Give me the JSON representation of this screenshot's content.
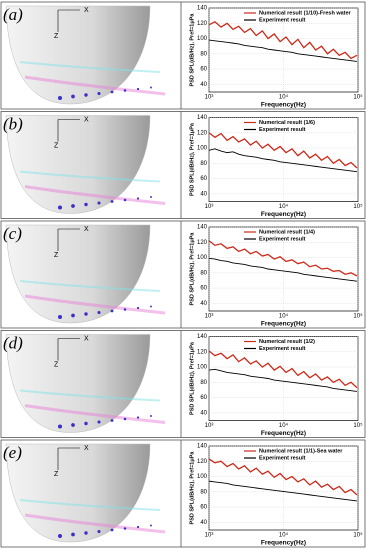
{
  "chart_data": [
    {
      "type": "line",
      "panel": "(a)",
      "inset_axes": [
        "X",
        "Z"
      ],
      "xlabel": "Frequency(Hz)",
      "ylabel": "PSD SPL(dB/Hz), Pref=1μPa",
      "log_x": true,
      "xlim": [
        1000,
        100000
      ],
      "xticks": [
        {
          "value": 1000,
          "label": "10³"
        },
        {
          "value": 10000,
          "label": "10⁴"
        },
        {
          "value": 100000,
          "label": "10⁵"
        }
      ],
      "ylim": [
        30,
        140
      ],
      "yticks": [
        40,
        60,
        80,
        100,
        120,
        140
      ],
      "grid": true,
      "x": [
        1000,
        1200,
        1450,
        1750,
        2100,
        2500,
        3000,
        3600,
        4300,
        5200,
        6200,
        7500,
        9000,
        10800,
        13000,
        15600,
        18700,
        22500,
        27000,
        32400,
        38900,
        46700,
        56000,
        67200,
        80600,
        96700
      ],
      "series": [
        {
          "name": "Numerical result (1/10)-Fresh water",
          "color": "#cc2a1a",
          "values": [
            118,
            122,
            115,
            120,
            112,
            116,
            108,
            113,
            104,
            110,
            100,
            106,
            96,
            102,
            92,
            99,
            88,
            95,
            85,
            90,
            80,
            86,
            78,
            82,
            74,
            78
          ]
        },
        {
          "name": "Experiment result",
          "color": "#000000",
          "values": [
            98,
            97,
            96,
            95,
            94,
            93,
            91,
            90,
            89,
            88,
            86,
            85,
            84,
            83,
            82,
            80,
            79,
            78,
            77,
            76,
            75,
            74,
            73,
            72,
            71,
            70
          ]
        }
      ]
    },
    {
      "type": "line",
      "panel": "(b)",
      "inset_axes": [
        "X",
        "Z"
      ],
      "xlabel": "Frequency(Hz)",
      "ylabel": "PSD SPL(dB/Hz), Pref=1μPa",
      "log_x": true,
      "xlim": [
        1000,
        100000
      ],
      "xticks": [
        {
          "value": 1000,
          "label": "10³"
        },
        {
          "value": 10000,
          "label": "10⁴"
        },
        {
          "value": 100000,
          "label": "10⁵"
        }
      ],
      "ylim": [
        30,
        140
      ],
      "yticks": [
        40,
        60,
        80,
        100,
        120,
        140
      ],
      "grid": true,
      "x": [
        1000,
        1200,
        1450,
        1750,
        2100,
        2500,
        3000,
        3600,
        4300,
        5200,
        6200,
        7500,
        9000,
        10800,
        13000,
        15600,
        18700,
        22500,
        27000,
        32400,
        38900,
        46700,
        56000,
        67200,
        80600,
        96700
      ],
      "series": [
        {
          "name": "Numerical result (1/6)",
          "color": "#cc2a1a",
          "values": [
            120,
            114,
            119,
            110,
            115,
            108,
            112,
            104,
            109,
            100,
            105,
            97,
            102,
            94,
            99,
            90,
            96,
            87,
            92,
            84,
            89,
            80,
            85,
            77,
            81,
            74
          ]
        },
        {
          "name": "Experiment result",
          "color": "#000000",
          "values": [
            97,
            99,
            96,
            94,
            95,
            92,
            90,
            89,
            88,
            86,
            85,
            84,
            82,
            81,
            80,
            79,
            78,
            77,
            76,
            75,
            74,
            73,
            72,
            71,
            70,
            69
          ]
        }
      ]
    },
    {
      "type": "line",
      "panel": "(c)",
      "inset_axes": [
        "X",
        "Z"
      ],
      "xlabel": "Frequency(Hz)",
      "ylabel": "PSD SPL(dB/Hz), Pref=1μPa",
      "log_x": true,
      "xlim": [
        1000,
        100000
      ],
      "xticks": [
        {
          "value": 1000,
          "label": "10³"
        },
        {
          "value": 10000,
          "label": "10⁴"
        },
        {
          "value": 100000,
          "label": "10⁵"
        }
      ],
      "ylim": [
        30,
        140
      ],
      "yticks": [
        40,
        60,
        80,
        100,
        120,
        140
      ],
      "grid": true,
      "x": [
        1000,
        1200,
        1450,
        1750,
        2100,
        2500,
        3000,
        3600,
        4300,
        5200,
        6200,
        7500,
        9000,
        10800,
        13000,
        15600,
        18700,
        22500,
        27000,
        32400,
        38900,
        46700,
        56000,
        67200,
        80600,
        96700
      ],
      "series": [
        {
          "name": "Numerical result (1/4)",
          "color": "#cc2a1a",
          "values": [
            122,
            116,
            118,
            112,
            114,
            108,
            111,
            105,
            108,
            102,
            104,
            98,
            101,
            95,
            97,
            92,
            94,
            88,
            90,
            85,
            86,
            82,
            83,
            78,
            80,
            76
          ]
        },
        {
          "name": "Experiment result",
          "color": "#000000",
          "values": [
            99,
            98,
            96,
            95,
            93,
            92,
            91,
            89,
            88,
            87,
            85,
            84,
            83,
            82,
            81,
            80,
            78,
            77,
            76,
            75,
            74,
            73,
            72,
            71,
            70,
            69
          ]
        }
      ]
    },
    {
      "type": "line",
      "panel": "(d)",
      "inset_axes": [
        "X",
        "Z"
      ],
      "xlabel": "Frequency(Hz)",
      "ylabel": "PSD SPL(dB/Hz), Pref=1μPa",
      "log_x": true,
      "xlim": [
        1000,
        100000
      ],
      "xticks": [
        {
          "value": 1000,
          "label": "10³"
        },
        {
          "value": 10000,
          "label": "10⁴"
        },
        {
          "value": 100000,
          "label": "10⁵"
        }
      ],
      "ylim": [
        30,
        140
      ],
      "yticks": [
        40,
        60,
        80,
        100,
        120,
        140
      ],
      "grid": true,
      "x": [
        1000,
        1200,
        1450,
        1750,
        2100,
        2500,
        3000,
        3600,
        4300,
        5200,
        6200,
        7500,
        9000,
        10800,
        13000,
        15600,
        18700,
        22500,
        27000,
        32400,
        38900,
        46700,
        56000,
        67200,
        80600,
        96700
      ],
      "series": [
        {
          "name": "Numerical result (1/2)",
          "color": "#cc2a1a",
          "values": [
            121,
            115,
            118,
            111,
            116,
            107,
            112,
            104,
            108,
            100,
            105,
            96,
            101,
            93,
            98,
            89,
            94,
            86,
            91,
            83,
            87,
            80,
            84,
            76,
            80,
            73
          ]
        },
        {
          "name": "Experiment result",
          "color": "#000000",
          "values": [
            96,
            97,
            95,
            93,
            92,
            91,
            90,
            88,
            87,
            86,
            85,
            83,
            82,
            81,
            80,
            79,
            78,
            77,
            76,
            75,
            74,
            72,
            71,
            70,
            69,
            68
          ]
        }
      ]
    },
    {
      "type": "line",
      "panel": "(e)",
      "inset_axes": [
        "X",
        "Z"
      ],
      "xlabel": "Frequency(Hz)",
      "ylabel": "PSD SPL(dB/Hz), Pref=1μPa",
      "log_x": true,
      "xlim": [
        1000,
        100000
      ],
      "xticks": [
        {
          "value": 1000,
          "label": "10³"
        },
        {
          "value": 10000,
          "label": "10⁴"
        },
        {
          "value": 100000,
          "label": "10⁵"
        }
      ],
      "ylim": [
        30,
        140
      ],
      "yticks": [
        40,
        60,
        80,
        100,
        120,
        140
      ],
      "grid": true,
      "x": [
        1000,
        1200,
        1450,
        1750,
        2100,
        2500,
        3000,
        3600,
        4300,
        5200,
        6200,
        7500,
        9000,
        10800,
        13000,
        15600,
        18700,
        22500,
        27000,
        32400,
        38900,
        46700,
        56000,
        67200,
        80600,
        96700
      ],
      "series": [
        {
          "name": "Numerical result (1/1)-Sea water",
          "color": "#cc2a1a",
          "values": [
            123,
            118,
            120,
            113,
            117,
            110,
            114,
            106,
            111,
            103,
            107,
            99,
            104,
            96,
            100,
            93,
            97,
            89,
            94,
            86,
            90,
            83,
            87,
            79,
            83,
            76
          ]
        },
        {
          "name": "Experiment result",
          "color": "#000000",
          "values": [
            94,
            93,
            92,
            91,
            89,
            88,
            87,
            86,
            85,
            84,
            83,
            82,
            81,
            80,
            79,
            78,
            77,
            76,
            75,
            74,
            73,
            72,
            71,
            70,
            69,
            68
          ]
        }
      ]
    }
  ]
}
